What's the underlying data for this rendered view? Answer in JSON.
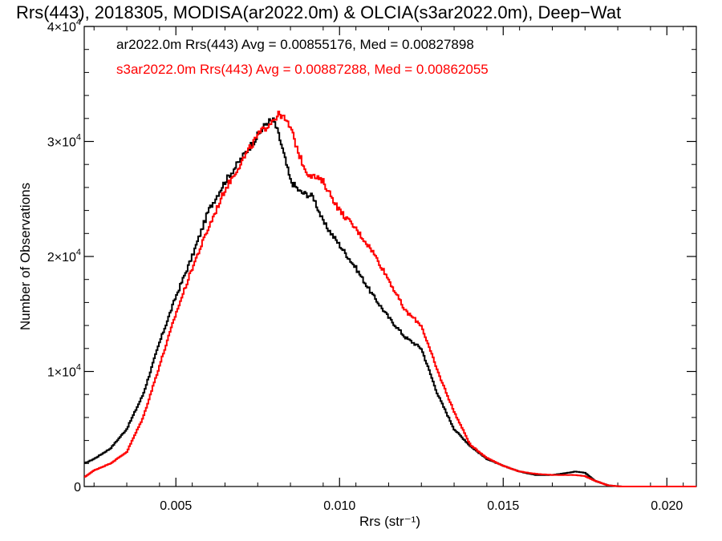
{
  "chart_data": {
    "type": "line",
    "title": "Rrs(443), 2018305, MODISA(ar2022.0m) & OLCIA(s3ar2022.0m), Deep−Wat",
    "xlabel": "Rrs (str⁻¹)",
    "ylabel": "Number of Observations",
    "xlim": [
      0.0022,
      0.0209
    ],
    "ylim": [
      0,
      40000
    ],
    "x_ticks": [
      0.005,
      0.01,
      0.015,
      0.02
    ],
    "x_tick_labels": [
      "0.005",
      "0.010",
      "0.015",
      "0.020"
    ],
    "y_ticks": [
      0,
      10000,
      20000,
      30000,
      40000
    ],
    "y_tick_labels": [
      {
        "mant": "0",
        "exp": ""
      },
      {
        "mant": "1×10",
        "exp": "4"
      },
      {
        "mant": "2×10",
        "exp": "4"
      },
      {
        "mant": "3×10",
        "exp": "4"
      },
      {
        "mant": "4×10",
        "exp": "4"
      }
    ],
    "annotations": [
      {
        "text": "ar2022.0m Rrs(443) Avg = 0.00855176, Med = 0.00827898",
        "color": "#000000"
      },
      {
        "text": "s3ar2022.0m Rrs(443) Avg = 0.00887288, Med = 0.00862055",
        "color": "#ff0000"
      }
    ],
    "series": [
      {
        "color": "#000000",
        "x": [
          0.0022,
          0.0025,
          0.003,
          0.0035,
          0.004,
          0.0045,
          0.005,
          0.0055,
          0.006,
          0.0065,
          0.007,
          0.0075,
          0.0078,
          0.008,
          0.0082,
          0.0085,
          0.0088,
          0.0092,
          0.0095,
          0.01,
          0.0105,
          0.011,
          0.0115,
          0.012,
          0.0125,
          0.013,
          0.0135,
          0.014,
          0.0145,
          0.015,
          0.0155,
          0.016,
          0.0165,
          0.017,
          0.0172,
          0.0175,
          0.0178,
          0.0182,
          0.0186,
          0.019,
          0.02,
          0.0209
        ],
        "y": [
          2000,
          2400,
          3300,
          5000,
          8000,
          12500,
          16500,
          20000,
          24000,
          26500,
          28500,
          30500,
          31700,
          31800,
          30000,
          26600,
          25600,
          25200,
          23000,
          21000,
          19000,
          16700,
          14700,
          13000,
          12000,
          8000,
          5000,
          3500,
          2400,
          1800,
          1300,
          1000,
          1000,
          1200,
          1300,
          1200,
          500,
          100,
          0,
          0,
          0,
          0
        ]
      },
      {
        "color": "#ff0000",
        "x": [
          0.0022,
          0.0025,
          0.003,
          0.0035,
          0.004,
          0.0045,
          0.005,
          0.0055,
          0.006,
          0.0065,
          0.007,
          0.0075,
          0.008,
          0.0082,
          0.0085,
          0.0088,
          0.009,
          0.0095,
          0.01,
          0.0105,
          0.011,
          0.0115,
          0.012,
          0.0122,
          0.0125,
          0.013,
          0.0135,
          0.014,
          0.0145,
          0.015,
          0.0155,
          0.016,
          0.0165,
          0.017,
          0.0172,
          0.0175,
          0.0178,
          0.0182,
          0.0186,
          0.019,
          0.02,
          0.0209
        ],
        "y": [
          800,
          1400,
          2000,
          3000,
          6000,
          10500,
          15000,
          19000,
          22500,
          25800,
          28200,
          30500,
          32000,
          32400,
          31200,
          28600,
          27300,
          26500,
          24000,
          22400,
          20500,
          18000,
          15300,
          14800,
          14000,
          10000,
          6500,
          3600,
          2500,
          1800,
          1300,
          1100,
          1000,
          1000,
          1000,
          900,
          500,
          100,
          0,
          0,
          0,
          0
        ]
      }
    ]
  }
}
